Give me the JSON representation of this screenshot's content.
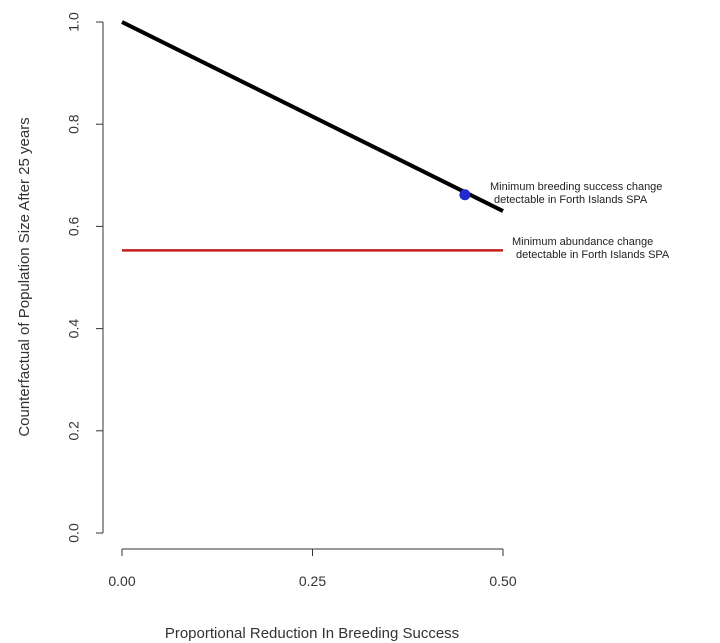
{
  "chart_data": {
    "type": "line",
    "title": "",
    "xlabel": "Proportional Reduction In Breeding Success",
    "ylabel": "Counterfactual of Population Size After 25 years",
    "xlim": [
      0,
      0.5
    ],
    "ylim": [
      0,
      1
    ],
    "x_ticks": [
      0,
      0.25,
      0.5
    ],
    "x_tick_labels": [
      "0.00",
      "0.25",
      "0.50"
    ],
    "y_ticks": [
      0,
      0.2,
      0.4,
      0.6,
      0.8,
      1.0
    ],
    "y_tick_labels": [
      "0.0",
      "0.2",
      "0.4",
      "0.6",
      "0.8",
      "1.0"
    ],
    "grid": false,
    "series": [
      {
        "kind": "line",
        "color": "#000000",
        "x": [
          0,
          0.5
        ],
        "y": [
          1.0,
          0.63
        ]
      },
      {
        "kind": "hline",
        "color": "#c41e1e",
        "x": [
          0,
          0.5
        ],
        "y": [
          0.553,
          0.553
        ]
      }
    ],
    "points": [
      {
        "x": 0.45,
        "y": 0.662,
        "color": "#1f2bd1"
      }
    ],
    "annotations": [
      {
        "lines": [
          "Minimum breeding success change",
          "detectable in Forth Islands SPA"
        ]
      },
      {
        "lines": [
          "Minimum abundance change",
          "detectable in Forth Islands SPA"
        ]
      }
    ]
  }
}
